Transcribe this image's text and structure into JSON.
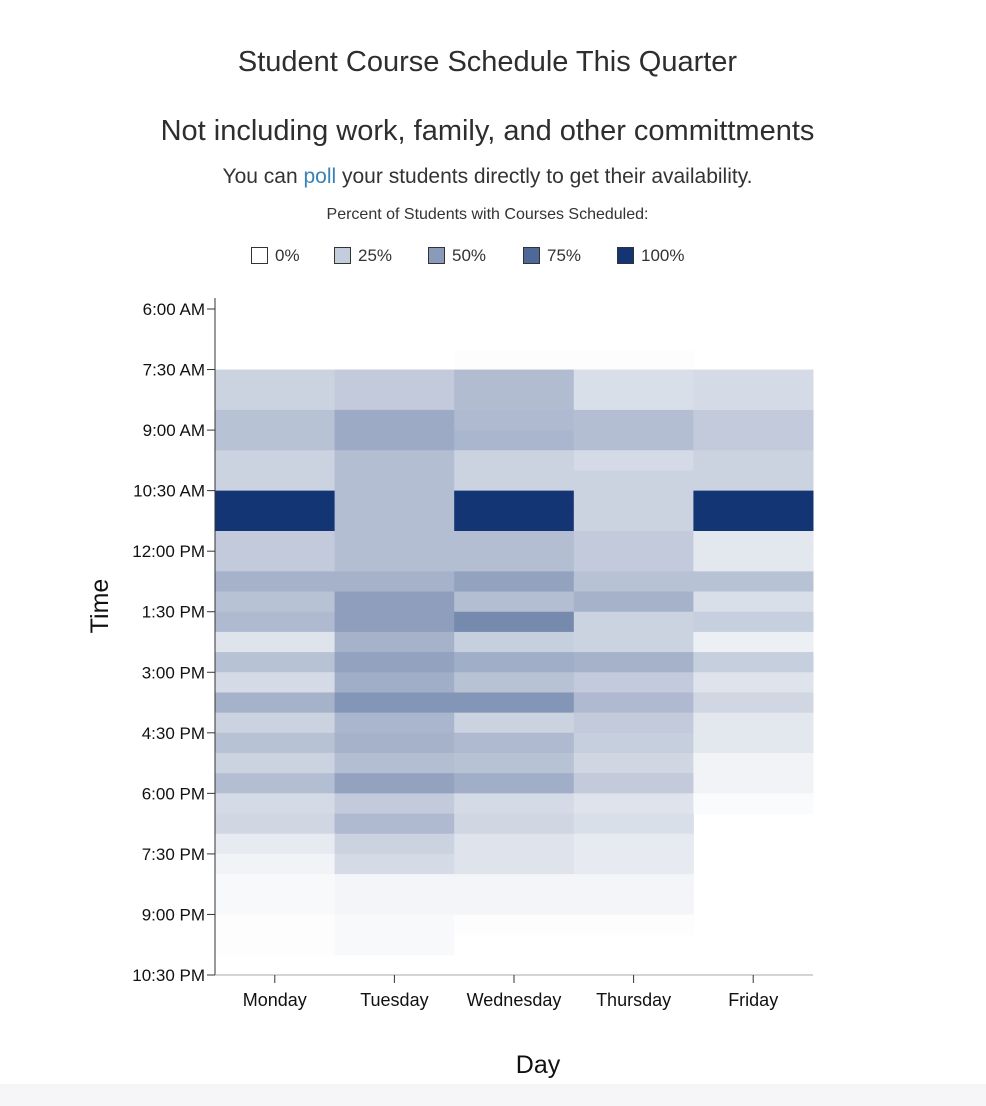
{
  "header": {
    "title": "Student Course Schedule This Quarter",
    "subtitle": "Not including work, family, and other committments",
    "poll_prefix": "You can ",
    "poll_link": "poll",
    "poll_suffix": " your students directly to get their availability."
  },
  "legend": {
    "title": "Percent of Students with Courses Scheduled:",
    "items": [
      {
        "label": "0%",
        "value": 0
      },
      {
        "label": "25%",
        "value": 25
      },
      {
        "label": "50%",
        "value": 50
      },
      {
        "label": "75%",
        "value": 75
      },
      {
        "label": "100%",
        "value": 100
      }
    ]
  },
  "colors": {
    "low": "#ffffff",
    "high": "#133574",
    "axis": "#333333"
  },
  "chart_data": {
    "type": "heatmap",
    "title": "Student Course Schedule This Quarter",
    "subtitle": "Not including work, family, and other committments",
    "xlabel": "Day",
    "ylabel": "Time",
    "x": [
      "Monday",
      "Tuesday",
      "Wednesday",
      "Thursday",
      "Friday"
    ],
    "y_ticks": [
      "6:00 AM",
      "7:30 AM",
      "9:00 AM",
      "10:30 AM",
      "12:00 PM",
      "1:30 PM",
      "3:00 PM",
      "4:30 PM",
      "6:00 PM",
      "7:30 PM",
      "9:00 PM",
      "10:30 PM"
    ],
    "y_range": [
      "6:00 AM",
      "10:30 PM"
    ],
    "slot_minutes": 30,
    "slot_starts": [
      "6:00 AM",
      "6:30 AM",
      "7:00 AM",
      "7:30 AM",
      "8:00 AM",
      "8:30 AM",
      "9:00 AM",
      "9:30 AM",
      "10:00 AM",
      "10:30 AM",
      "11:00 AM",
      "11:30 AM",
      "12:00 PM",
      "12:30 PM",
      "1:00 PM",
      "1:30 PM",
      "2:00 PM",
      "2:30 PM",
      "3:00 PM",
      "3:30 PM",
      "4:00 PM",
      "4:30 PM",
      "5:00 PM",
      "5:30 PM",
      "6:00 PM",
      "6:30 PM",
      "7:00 PM",
      "7:30 PM",
      "8:00 PM",
      "8:30 PM",
      "9:00 PM",
      "9:30 PM",
      "10:00 PM"
    ],
    "value_range": [
      0,
      100
    ],
    "legend_placement": "top",
    "values": [
      [
        0,
        0,
        0,
        0,
        0
      ],
      [
        0,
        0,
        0,
        0,
        0
      ],
      [
        0,
        0,
        1,
        1,
        0
      ],
      [
        22,
        26,
        33,
        16,
        18
      ],
      [
        22,
        26,
        33,
        16,
        18
      ],
      [
        30,
        42,
        34,
        32,
        26
      ],
      [
        30,
        42,
        36,
        32,
        26
      ],
      [
        22,
        32,
        22,
        18,
        22
      ],
      [
        22,
        32,
        22,
        22,
        22
      ],
      [
        100,
        32,
        100,
        22,
        100
      ],
      [
        100,
        32,
        100,
        22,
        100
      ],
      [
        26,
        32,
        32,
        26,
        12
      ],
      [
        26,
        32,
        32,
        26,
        12
      ],
      [
        38,
        38,
        46,
        30,
        30
      ],
      [
        30,
        48,
        32,
        38,
        16
      ],
      [
        34,
        48,
        58,
        22,
        24
      ],
      [
        14,
        38,
        24,
        22,
        8
      ],
      [
        30,
        46,
        40,
        38,
        24
      ],
      [
        18,
        40,
        30,
        26,
        14
      ],
      [
        38,
        52,
        52,
        34,
        20
      ],
      [
        22,
        36,
        22,
        26,
        12
      ],
      [
        30,
        38,
        34,
        24,
        12
      ],
      [
        22,
        32,
        30,
        20,
        6
      ],
      [
        32,
        46,
        40,
        26,
        6
      ],
      [
        18,
        26,
        18,
        14,
        2
      ],
      [
        20,
        34,
        20,
        16,
        0
      ],
      [
        10,
        22,
        14,
        10,
        0
      ],
      [
        6,
        18,
        14,
        10,
        0
      ],
      [
        3,
        5,
        5,
        5,
        0
      ],
      [
        3,
        5,
        5,
        5,
        0
      ],
      [
        1,
        3,
        1,
        1,
        0
      ],
      [
        1,
        3,
        0,
        0,
        0
      ],
      [
        0,
        0,
        0,
        0,
        0
      ]
    ]
  }
}
